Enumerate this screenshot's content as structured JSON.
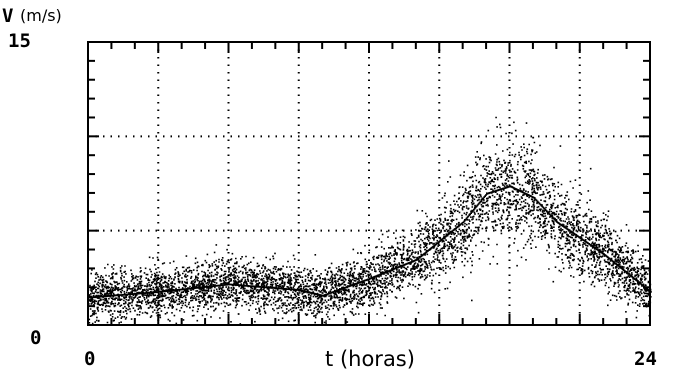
{
  "chart_data": {
    "type": "scatter",
    "title": "",
    "ylabel_symbol": "V",
    "ylabel_unit": "(m/s)",
    "xlabel": "t (horas)",
    "xlim": [
      0,
      24
    ],
    "ylim": [
      0,
      15
    ],
    "x_tick_labels": [
      "0",
      "24"
    ],
    "y_tick_labels": [
      "0",
      "15"
    ],
    "grid": "dotted",
    "trend_line": {
      "x": [
        0,
        3,
        6,
        9,
        10,
        12,
        14,
        16,
        17,
        18,
        19,
        20,
        22,
        24
      ],
      "y": [
        1.5,
        1.8,
        2.2,
        1.9,
        1.6,
        2.5,
        3.5,
        5.5,
        7.0,
        7.4,
        6.8,
        5.5,
        3.8,
        1.8
      ]
    },
    "scatter_note": "≈6000 instantaneous speed samples scattered around the trend line"
  },
  "colors": {
    "points": "#000000",
    "background": "#ffffff"
  }
}
